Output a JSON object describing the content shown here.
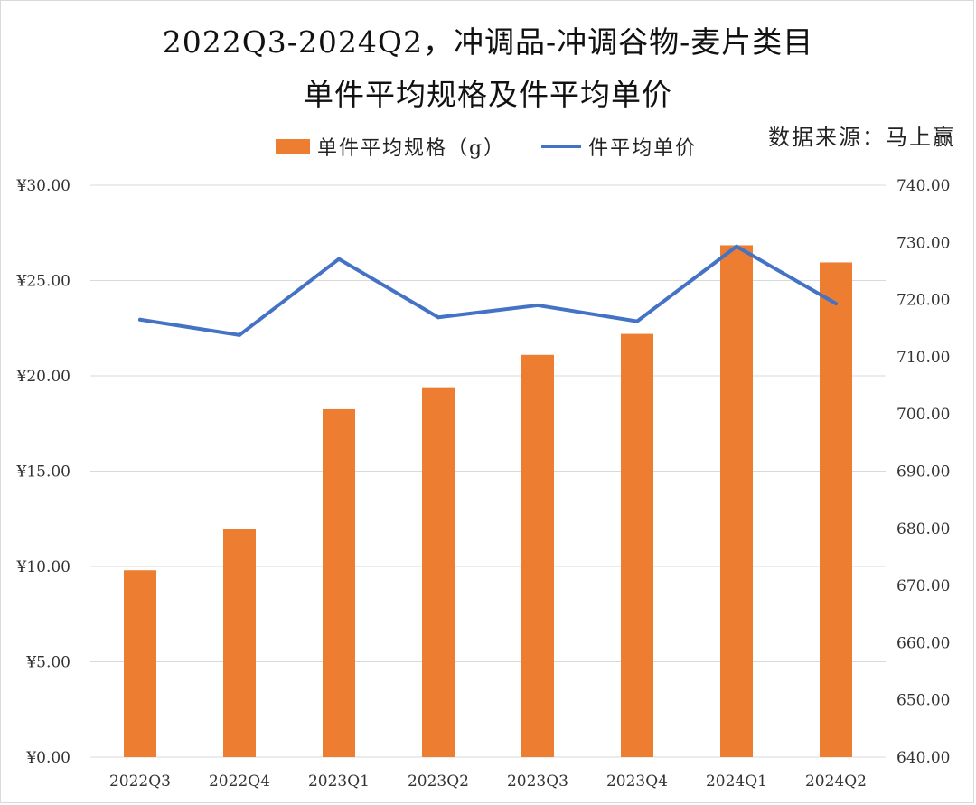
{
  "chart_data": {
    "type": "bar+line",
    "title": "2022Q3-2024Q2，冲调品-冲调谷物-麦片类目",
    "subtitle": "单件平均规格及件平均单价",
    "source": "数据来源：马上赢",
    "categories": [
      "2022Q3",
      "2022Q4",
      "2023Q1",
      "2023Q2",
      "2023Q3",
      "2023Q4",
      "2024Q1",
      "2024Q2"
    ],
    "series": [
      {
        "name": "单件平均规格（g）",
        "type": "bar",
        "axis": "left",
        "color": "#ED7D31",
        "values": [
          9.8,
          11.95,
          18.25,
          19.4,
          21.1,
          22.2,
          26.85,
          25.95
        ]
      },
      {
        "name": "件平均单价",
        "type": "line",
        "axis": "right",
        "color": "#4472C4",
        "values": [
          716.5,
          713.8,
          727.1,
          716.9,
          719.0,
          716.2,
          729.3,
          719.3
        ]
      }
    ],
    "y_left": {
      "min": 0,
      "max": 30,
      "ticks": [
        "¥0.00",
        "¥5.00",
        "¥10.00",
        "¥15.00",
        "¥20.00",
        "¥25.00",
        "¥30.00"
      ]
    },
    "y_right": {
      "min": 640,
      "max": 740,
      "ticks": [
        "640.00",
        "650.00",
        "660.00",
        "670.00",
        "680.00",
        "690.00",
        "700.00",
        "710.00",
        "720.00",
        "730.00",
        "740.00"
      ]
    },
    "grid": true,
    "legend_position": "top"
  }
}
